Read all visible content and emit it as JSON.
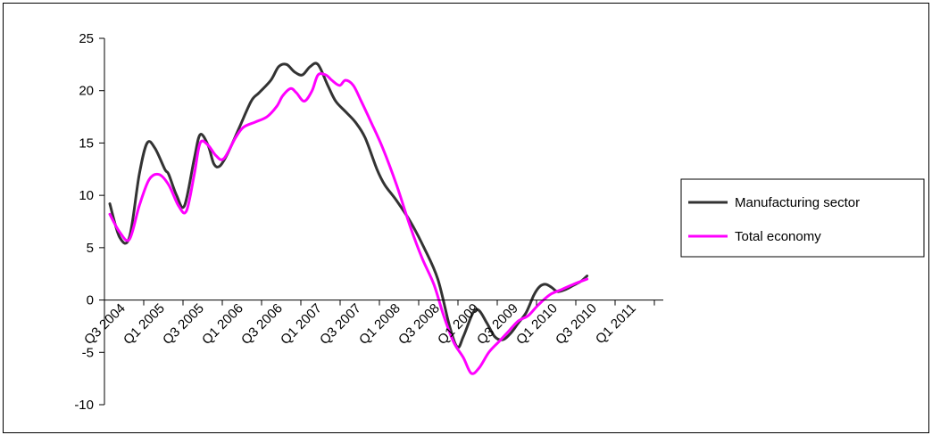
{
  "chart_data": {
    "type": "line",
    "title": "",
    "xlabel": "",
    "ylabel": "",
    "ylim": [
      -10,
      25
    ],
    "y_ticks": [
      "25",
      "20",
      "15",
      "10",
      "5",
      "0",
      "-5",
      "-10"
    ],
    "x_ticks": [
      "Q3 2004",
      "Q1 2005",
      "Q3 2005",
      "Q1 2006",
      "Q3 2006",
      "Q1 2007",
      "Q3 2007",
      "Q1 2008",
      "Q3 2008",
      "Q1 2009",
      "Q3 2009",
      "Q1 2010",
      "Q3 2010",
      "Q1 2011"
    ],
    "grid": false,
    "legend_position": "right",
    "series": [
      {
        "name": "Manufacturing sector",
        "color": "#333333",
        "points": [
          [
            0,
            9.2
          ],
          [
            0.5,
            6.0
          ],
          [
            1.0,
            6.0
          ],
          [
            1.5,
            12.0
          ],
          [
            1.9,
            15.0
          ],
          [
            2.3,
            14.5
          ],
          [
            2.8,
            12.5
          ],
          [
            3.0,
            12.0
          ],
          [
            3.4,
            10.0
          ],
          [
            3.8,
            9.0
          ],
          [
            4.3,
            13.5
          ],
          [
            4.6,
            15.8
          ],
          [
            5.0,
            14.8
          ],
          [
            5.3,
            13.0
          ],
          [
            5.6,
            12.8
          ],
          [
            6.0,
            14.0
          ],
          [
            6.6,
            16.5
          ],
          [
            7.2,
            19.0
          ],
          [
            7.6,
            19.8
          ],
          [
            8.2,
            21.0
          ],
          [
            8.6,
            22.3
          ],
          [
            9.0,
            22.5
          ],
          [
            9.4,
            21.8
          ],
          [
            9.8,
            21.5
          ],
          [
            10.2,
            22.3
          ],
          [
            10.6,
            22.5
          ],
          [
            11.1,
            20.5
          ],
          [
            11.5,
            19.0
          ],
          [
            12.0,
            18.0
          ],
          [
            12.5,
            17.0
          ],
          [
            13.0,
            15.5
          ],
          [
            13.6,
            12.5
          ],
          [
            14.0,
            11.0
          ],
          [
            14.6,
            9.5
          ],
          [
            15.3,
            7.5
          ],
          [
            16.0,
            5.0
          ],
          [
            16.7,
            2.0
          ],
          [
            17.3,
            -2.5
          ],
          [
            17.7,
            -4.5
          ],
          [
            18.0,
            -3.5
          ],
          [
            18.5,
            -1.2
          ],
          [
            18.8,
            -1.0
          ],
          [
            19.2,
            -2.2
          ],
          [
            19.6,
            -3.5
          ],
          [
            20.0,
            -3.8
          ],
          [
            20.4,
            -3.2
          ],
          [
            20.8,
            -2.2
          ],
          [
            21.2,
            -1.2
          ],
          [
            21.6,
            0.5
          ],
          [
            21.9,
            1.3
          ],
          [
            22.2,
            1.5
          ],
          [
            22.5,
            1.2
          ],
          [
            22.8,
            0.8
          ],
          [
            23.2,
            1.0
          ],
          [
            23.6,
            1.4
          ],
          [
            24.0,
            1.8
          ],
          [
            24.3,
            2.3
          ]
        ]
      },
      {
        "name": "Total economy",
        "color": "#ff00ff",
        "points": [
          [
            0,
            8.2
          ],
          [
            0.5,
            6.5
          ],
          [
            1.0,
            5.8
          ],
          [
            1.5,
            9.0
          ],
          [
            2.0,
            11.5
          ],
          [
            2.5,
            12.0
          ],
          [
            3.0,
            11.0
          ],
          [
            3.5,
            9.0
          ],
          [
            3.9,
            8.5
          ],
          [
            4.3,
            12.0
          ],
          [
            4.6,
            15.0
          ],
          [
            5.0,
            14.8
          ],
          [
            5.4,
            13.8
          ],
          [
            5.8,
            13.5
          ],
          [
            6.4,
            15.5
          ],
          [
            6.8,
            16.5
          ],
          [
            7.4,
            17.0
          ],
          [
            8.0,
            17.5
          ],
          [
            8.5,
            18.5
          ],
          [
            8.8,
            19.5
          ],
          [
            9.2,
            20.2
          ],
          [
            9.5,
            19.8
          ],
          [
            9.9,
            19.0
          ],
          [
            10.3,
            20.0
          ],
          [
            10.6,
            21.5
          ],
          [
            11.0,
            21.5
          ],
          [
            11.3,
            21.0
          ],
          [
            11.7,
            20.5
          ],
          [
            12.0,
            21.0
          ],
          [
            12.4,
            20.5
          ],
          [
            12.8,
            19.0
          ],
          [
            13.3,
            17.0
          ],
          [
            13.9,
            14.5
          ],
          [
            14.6,
            11.0
          ],
          [
            15.3,
            7.0
          ],
          [
            15.9,
            4.0
          ],
          [
            16.5,
            1.5
          ],
          [
            17.0,
            -1.5
          ],
          [
            17.5,
            -4.0
          ],
          [
            18.0,
            -5.5
          ],
          [
            18.4,
            -7.0
          ],
          [
            18.8,
            -6.5
          ],
          [
            19.3,
            -5.0
          ],
          [
            19.8,
            -4.0
          ],
          [
            20.3,
            -3.0
          ],
          [
            20.8,
            -2.0
          ],
          [
            21.3,
            -1.5
          ],
          [
            21.8,
            -0.5
          ],
          [
            22.4,
            0.5
          ],
          [
            23.0,
            1.0
          ],
          [
            23.6,
            1.5
          ],
          [
            24.3,
            2.0
          ]
        ]
      }
    ]
  }
}
